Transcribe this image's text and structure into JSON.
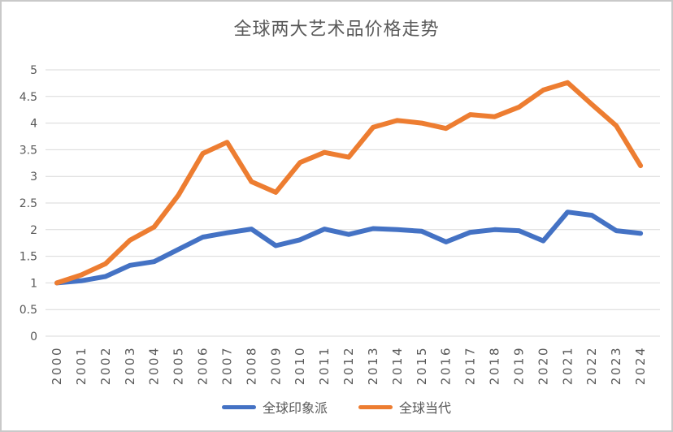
{
  "chart_data": {
    "type": "line",
    "title": "全球两大艺术品价格走势",
    "x": [
      2000,
      2001,
      2002,
      2003,
      2004,
      2005,
      2006,
      2007,
      2008,
      2009,
      2010,
      2011,
      2012,
      2013,
      2014,
      2015,
      2016,
      2017,
      2018,
      2019,
      2020,
      2021,
      2022,
      2023,
      2024
    ],
    "series": [
      {
        "name": "全球印象派",
        "color": "#4472C4",
        "values": [
          1.0,
          1.04,
          1.12,
          1.33,
          1.4,
          1.63,
          1.86,
          1.94,
          2.01,
          1.7,
          1.81,
          2.01,
          1.91,
          2.02,
          2.0,
          1.97,
          1.77,
          1.95,
          2.0,
          1.98,
          1.79,
          2.33,
          2.27,
          1.98,
          1.93
        ]
      },
      {
        "name": "全球当代",
        "color": "#ED7D31",
        "values": [
          1.0,
          1.15,
          1.36,
          1.8,
          2.05,
          2.65,
          3.43,
          3.64,
          2.9,
          2.7,
          3.26,
          3.45,
          3.36,
          3.92,
          4.05,
          4.0,
          3.9,
          4.16,
          4.12,
          4.3,
          4.62,
          4.76,
          4.35,
          3.95,
          3.2
        ]
      }
    ],
    "ylim": [
      0,
      5
    ],
    "yticks": [
      0,
      0.5,
      1,
      1.5,
      2,
      2.5,
      3,
      3.5,
      4,
      4.5,
      5
    ],
    "grid": true,
    "legend_position": "bottom"
  },
  "colors": {
    "title_text": "#595959",
    "axis_text": "#595959",
    "gridline": "#D9D9D9",
    "border": "#C9C9C9",
    "background": "#FFFFFF"
  }
}
